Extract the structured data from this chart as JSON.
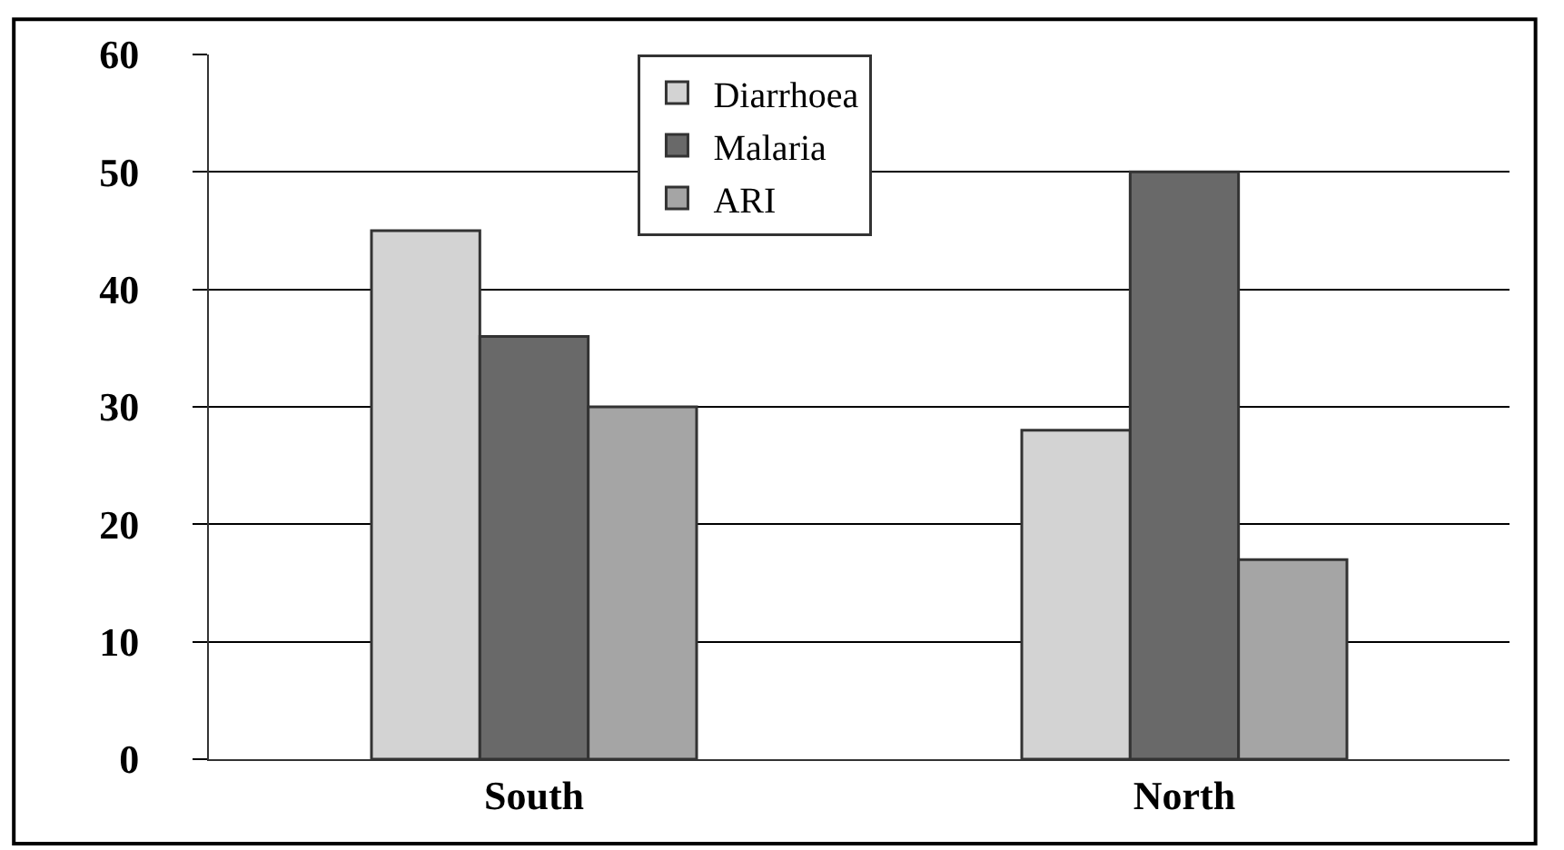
{
  "chart_data": {
    "type": "bar",
    "categories": [
      "South",
      "North"
    ],
    "series": [
      {
        "name": "Diarrhoea",
        "color": "#d3d3d3",
        "values": [
          45,
          28
        ]
      },
      {
        "name": "Malaria",
        "color": "#696969",
        "values": [
          36,
          50
        ]
      },
      {
        "name": "ARI",
        "color": "#a5a5a5",
        "values": [
          30,
          17
        ]
      }
    ],
    "ylim": [
      0,
      60
    ],
    "yticks": [
      0,
      10,
      20,
      30,
      40,
      50,
      60
    ],
    "grid": "y",
    "legend": "top"
  }
}
